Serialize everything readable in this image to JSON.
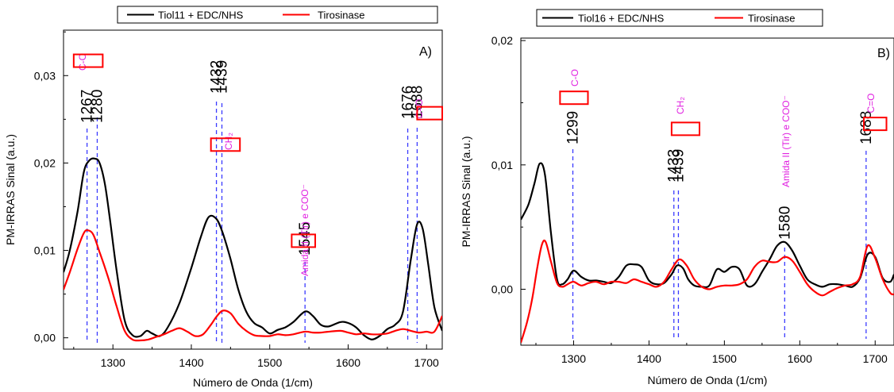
{
  "chart_data": [
    {
      "type": "line",
      "panel_label": "A)",
      "xlabel": "Número de Onda (1/cm)",
      "ylabel": "PM-IRRAS Sinal (a.u.)",
      "xlim": [
        1237,
        1720
      ],
      "ylim": [
        -0.0013,
        0.0352
      ],
      "x_ticks": [
        1300,
        1400,
        1500,
        1600,
        1700
      ],
      "y_ticks": [
        0.0,
        0.01,
        0.02,
        0.03
      ],
      "y_tick_labels": [
        "0,00",
        "0,01",
        "0,02",
        "0,03"
      ],
      "legend_position": "top",
      "series": [
        {
          "name": "Tiol11 + EDC/NHS",
          "color": "#000000",
          "x": [
            1237,
            1245,
            1255,
            1263,
            1270,
            1277,
            1283,
            1290,
            1297,
            1305,
            1315,
            1325,
            1335,
            1343,
            1350,
            1360,
            1370,
            1385,
            1400,
            1412,
            1422,
            1432,
            1440,
            1450,
            1460,
            1470,
            1480,
            1490,
            1500,
            1510,
            1520,
            1530,
            1545,
            1555,
            1565,
            1575,
            1590,
            1600,
            1610,
            1620,
            1630,
            1640,
            1650,
            1660,
            1670,
            1680,
            1688,
            1695,
            1702,
            1710,
            1720
          ],
          "y": [
            0.0075,
            0.01,
            0.0145,
            0.019,
            0.0203,
            0.0205,
            0.02,
            0.0175,
            0.013,
            0.0075,
            0.002,
            0.0003,
            0.0002,
            0.0008,
            0.0005,
            0.0002,
            0.0012,
            0.004,
            0.008,
            0.0115,
            0.0138,
            0.0136,
            0.012,
            0.009,
            0.0055,
            0.003,
            0.0017,
            0.0012,
            0.0005,
            0.0009,
            0.0012,
            0.0018,
            0.003,
            0.0025,
            0.0015,
            0.0013,
            0.0018,
            0.0017,
            0.0012,
            0.0003,
            -0.0002,
            0.0002,
            0.001,
            0.0015,
            0.003,
            0.009,
            0.013,
            0.0125,
            0.0085,
            0.0035,
            0.0008
          ]
        },
        {
          "name": "Tirosinase",
          "color": "#ff0000",
          "x": [
            1237,
            1245,
            1255,
            1263,
            1268,
            1275,
            1283,
            1290,
            1297,
            1305,
            1315,
            1325,
            1335,
            1345,
            1355,
            1365,
            1375,
            1385,
            1395,
            1405,
            1415,
            1425,
            1432,
            1440,
            1450,
            1460,
            1470,
            1480,
            1490,
            1500,
            1510,
            1520,
            1530,
            1545,
            1555,
            1565,
            1575,
            1590,
            1600,
            1610,
            1620,
            1630,
            1640,
            1650,
            1660,
            1670,
            1680,
            1690,
            1700,
            1710,
            1720
          ],
          "y": [
            0.0055,
            0.0075,
            0.0102,
            0.012,
            0.0123,
            0.0118,
            0.0098,
            0.008,
            0.006,
            0.0035,
            0.0008,
            -0.0002,
            -0.0003,
            -0.0002,
            0.0001,
            0.0004,
            0.0008,
            0.0011,
            0.0007,
            0.0002,
            0.0004,
            0.0015,
            0.0024,
            0.0031,
            0.0028,
            0.0016,
            0.0008,
            0.0003,
            0.0002,
            0.0002,
            0.0004,
            0.0003,
            0.0004,
            0.0007,
            0.0006,
            0.0006,
            0.0007,
            0.0008,
            0.0006,
            0.0004,
            0.0005,
            0.0004,
            0.0004,
            0.0005,
            0.0008,
            0.001,
            0.0008,
            0.0006,
            0.0007,
            0.0007,
            0.0025
          ]
        }
      ],
      "annotations": {
        "peak_labels": [
          {
            "text": "1267",
            "x": 1267
          },
          {
            "text": "1280",
            "x": 1280
          },
          {
            "text": "1432",
            "x": 1432
          },
          {
            "text": "1439",
            "x": 1439
          },
          {
            "text": "1545",
            "x": 1545
          },
          {
            "text": "1676",
            "x": 1676
          },
          {
            "text": "1688",
            "x": 1688
          }
        ],
        "peak_lines": [
          1267,
          1280,
          1432,
          1439,
          1545,
          1676,
          1688
        ],
        "groups": [
          {
            "text": "C-O",
            "box_x": [
              1250,
              1287
            ],
            "box_y": 0.0317
          },
          {
            "text": "CH₂",
            "box_x": [
              1425,
              1462
            ],
            "box_y": 0.0221
          },
          {
            "text": "Amida II (Tir) e COO⁻",
            "box_x": [
              1528,
              1558
            ],
            "box_y": 0.0111
          },
          {
            "text": "C=O",
            "box_x": [
              1688,
              1720
            ],
            "box_y": 0.0257
          }
        ]
      }
    },
    {
      "type": "line",
      "panel_label": "B)",
      "xlabel": "Número de Onda (1/cm)",
      "ylabel": "PM-IRRAS Sinal (a.u.)",
      "xlim": [
        1230,
        1725
      ],
      "ylim": [
        -0.0045,
        0.0202
      ],
      "x_ticks": [
        1300,
        1400,
        1500,
        1600,
        1700
      ],
      "y_ticks": [
        0.0,
        0.01,
        0.02
      ],
      "y_tick_labels": [
        "0,00",
        "0,01",
        "0,02"
      ],
      "legend_position": "top",
      "series": [
        {
          "name": "Tiol16 + EDC/NHS",
          "color": "#000000",
          "x": [
            1230,
            1240,
            1248,
            1255,
            1262,
            1270,
            1278,
            1285,
            1292,
            1300,
            1310,
            1320,
            1330,
            1340,
            1350,
            1360,
            1370,
            1380,
            1390,
            1400,
            1410,
            1420,
            1430,
            1437,
            1445,
            1452,
            1460,
            1470,
            1480,
            1490,
            1500,
            1510,
            1520,
            1530,
            1540,
            1550,
            1560,
            1570,
            1580,
            1590,
            1600,
            1610,
            1620,
            1630,
            1640,
            1650,
            1660,
            1670,
            1680,
            1690,
            1700,
            1710,
            1720,
            1725
          ],
          "y": [
            0.0056,
            0.0068,
            0.0085,
            0.0101,
            0.0092,
            0.0045,
            0.0008,
            0.0004,
            0.0008,
            0.0015,
            0.001,
            0.0007,
            0.0007,
            0.0006,
            0.0005,
            0.001,
            0.0019,
            0.002,
            0.0018,
            0.0007,
            0.0004,
            0.0005,
            0.0012,
            0.0019,
            0.0017,
            0.0008,
            0.0003,
            0.0002,
            0.0003,
            0.0016,
            0.0014,
            0.0018,
            0.0016,
            0.0003,
            0.0004,
            0.0014,
            0.0024,
            0.0035,
            0.0038,
            0.0031,
            0.0019,
            0.0008,
            0.0004,
            0.0002,
            0.0004,
            0.0004,
            0.0003,
            0.0002,
            0.0009,
            0.0028,
            0.0026,
            0.0009,
            0.0006,
            0.0012
          ]
        },
        {
          "name": "Tirosinase",
          "color": "#ff0000",
          "x": [
            1230,
            1238,
            1245,
            1252,
            1258,
            1263,
            1270,
            1278,
            1285,
            1292,
            1300,
            1310,
            1320,
            1330,
            1340,
            1350,
            1360,
            1370,
            1380,
            1390,
            1400,
            1410,
            1420,
            1430,
            1440,
            1450,
            1460,
            1470,
            1480,
            1490,
            1500,
            1510,
            1520,
            1530,
            1540,
            1550,
            1560,
            1570,
            1580,
            1590,
            1600,
            1610,
            1620,
            1630,
            1640,
            1650,
            1660,
            1670,
            1680,
            1690,
            1700,
            1710,
            1720,
            1725
          ],
          "y": [
            -0.0043,
            -0.0027,
            -0.0008,
            0.0018,
            0.0036,
            0.0038,
            0.0022,
            0.0005,
            0.0002,
            0.0004,
            0.0006,
            0.0003,
            0.0005,
            0.0006,
            0.0004,
            0.0006,
            0.0006,
            0.0005,
            0.0008,
            0.0006,
            0.0004,
            0.0002,
            0.0006,
            0.0016,
            0.0024,
            0.0019,
            0.0008,
            0.0002,
            0.0,
            0.0002,
            0.0003,
            0.0003,
            0.0004,
            0.0008,
            0.0018,
            0.0023,
            0.0022,
            0.0022,
            0.0026,
            0.0023,
            0.0014,
            0.0004,
            -0.0002,
            -0.0005,
            -0.0002,
            0.0001,
            0.0003,
            0.0004,
            0.001,
            0.0035,
            0.0025,
            0.0008,
            -0.0003,
            -0.0004
          ]
        }
      ],
      "annotations": {
        "peak_labels": [
          {
            "text": "1299",
            "x": 1299
          },
          {
            "text": "1433",
            "x": 1433
          },
          {
            "text": "1439",
            "x": 1439
          },
          {
            "text": "1580",
            "x": 1580
          },
          {
            "text": "1688",
            "x": 1688
          }
        ],
        "peak_lines": [
          1299,
          1433,
          1439,
          1580,
          1688
        ],
        "groups": [
          {
            "text": "C-O",
            "box_x": [
              1282,
              1319
            ],
            "box_y": 0.0154
          },
          {
            "text": "CH₂",
            "box_x": [
              1430,
              1467
            ],
            "box_y": 0.0129
          },
          {
            "text": "Amida II (Tir) e COO⁻",
            "box_x": null,
            "box_y": null
          },
          {
            "text": "C=O",
            "box_x": [
              1685,
              1715
            ],
            "box_y": 0.0133
          }
        ]
      }
    }
  ]
}
